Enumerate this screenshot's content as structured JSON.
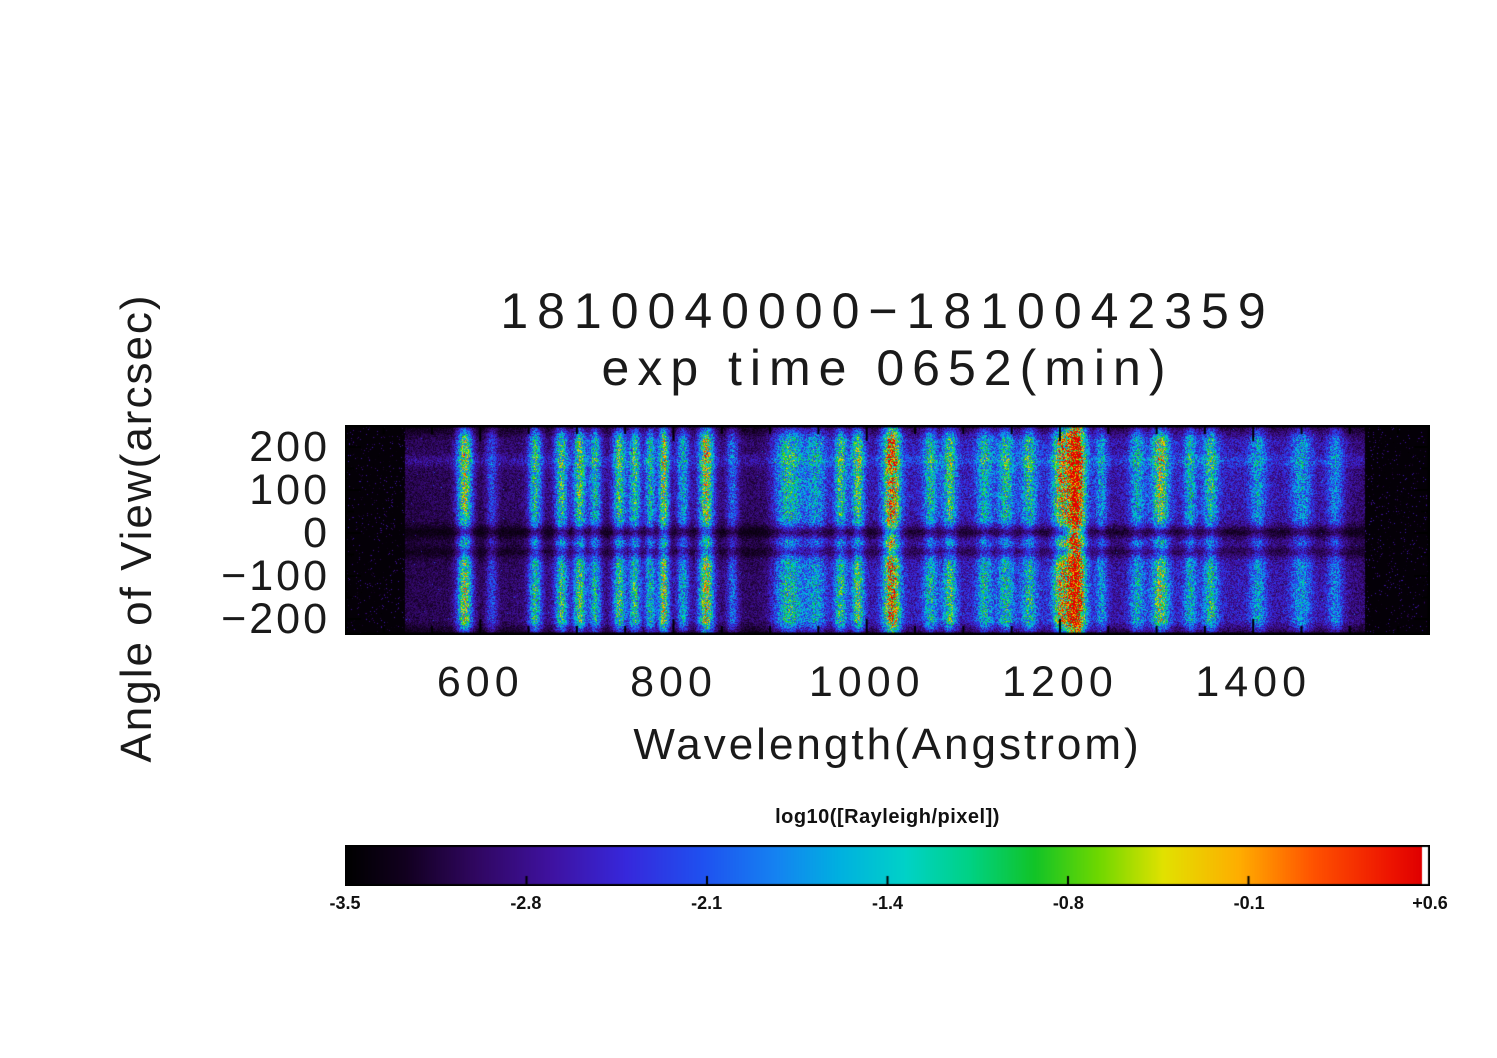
{
  "chart_data": {
    "type": "heatmap",
    "title": "1810040000−1810042359",
    "subtitle": "exp time 0652(min)",
    "xlabel": "Wavelength(Angstrom)",
    "ylabel": "Angle of View(arcsec)",
    "xlim": [
      460,
      1583
    ],
    "ylim": [
      -237,
      251
    ],
    "grid": false,
    "x_ticks": [
      {
        "value": 600,
        "label": "600"
      },
      {
        "value": 800,
        "label": "800"
      },
      {
        "value": 1000,
        "label": "1000"
      },
      {
        "value": 1200,
        "label": "1200"
      },
      {
        "value": 1400,
        "label": "1400"
      }
    ],
    "x_minor_step": 50,
    "y_ticks": [
      {
        "value": 200,
        "label": "200"
      },
      {
        "value": 100,
        "label": "100"
      },
      {
        "value": 0,
        "label": "0"
      },
      {
        "value": -100,
        "label": "−100"
      },
      {
        "value": -200,
        "label": "−200"
      }
    ],
    "y_minor_step": 50,
    "colorbar": {
      "label": "log10([Rayleigh/pixel])",
      "tick_labels": [
        "-3.5",
        "-2.8",
        "-2.1",
        "-1.4",
        "-0.8",
        "-0.1",
        "+0.6"
      ],
      "value_min": -3.5,
      "value_max": 0.6
    },
    "colormap": [
      [
        0.0,
        "#000000"
      ],
      [
        0.055,
        "#12001f"
      ],
      [
        0.12,
        "#300760"
      ],
      [
        0.19,
        "#3f12a0"
      ],
      [
        0.26,
        "#3728dc"
      ],
      [
        0.33,
        "#2050f0"
      ],
      [
        0.4,
        "#1583f2"
      ],
      [
        0.46,
        "#00b2e0"
      ],
      [
        0.52,
        "#00d2c8"
      ],
      [
        0.58,
        "#00d285"
      ],
      [
        0.64,
        "#12c428"
      ],
      [
        0.7,
        "#70d800"
      ],
      [
        0.76,
        "#e2e200"
      ],
      [
        0.83,
        "#ffae00"
      ],
      [
        0.9,
        "#ff5200"
      ],
      [
        0.97,
        "#ee1500"
      ],
      [
        1.0,
        "#e00000"
      ]
    ],
    "detector_range": [
      522,
      1516
    ],
    "background_profile": [
      [
        522,
        0.1
      ],
      [
        560,
        0.11
      ],
      [
        600,
        0.11
      ],
      [
        650,
        0.14
      ],
      [
        720,
        0.15
      ],
      [
        800,
        0.16
      ],
      [
        860,
        0.13
      ],
      [
        895,
        0.12
      ],
      [
        915,
        0.19
      ],
      [
        960,
        0.18
      ],
      [
        1010,
        0.2
      ],
      [
        1060,
        0.22
      ],
      [
        1110,
        0.22
      ],
      [
        1170,
        0.24
      ],
      [
        1216,
        0.26
      ],
      [
        1255,
        0.19
      ],
      [
        1300,
        0.23
      ],
      [
        1360,
        0.22
      ],
      [
        1430,
        0.2
      ],
      [
        1480,
        0.18
      ],
      [
        1516,
        0.14
      ]
    ],
    "emission_lines": [
      {
        "wl": 584,
        "amp": 0.55,
        "width": 13
      },
      {
        "wl": 612,
        "amp": 0.18,
        "width": 10
      },
      {
        "wl": 657,
        "amp": 0.4,
        "width": 11
      },
      {
        "wl": 684,
        "amp": 0.42,
        "width": 11
      },
      {
        "wl": 703,
        "amp": 0.45,
        "width": 11
      },
      {
        "wl": 719,
        "amp": 0.36,
        "width": 10
      },
      {
        "wl": 744,
        "amp": 0.42,
        "width": 11
      },
      {
        "wl": 760,
        "amp": 0.4,
        "width": 10
      },
      {
        "wl": 776,
        "amp": 0.34,
        "width": 9
      },
      {
        "wl": 790,
        "amp": 0.5,
        "width": 9,
        "pexp": 0.65
      },
      {
        "wl": 810,
        "amp": 0.3,
        "width": 10
      },
      {
        "wl": 834,
        "amp": 0.55,
        "width": 13,
        "pexp": 0.65
      },
      {
        "wl": 861,
        "amp": 0.22,
        "width": 10
      },
      {
        "wl": 920,
        "amp": 0.34,
        "width": 26
      },
      {
        "wl": 948,
        "amp": 0.26,
        "width": 18
      },
      {
        "wl": 973,
        "amp": 0.38,
        "width": 11
      },
      {
        "wl": 991,
        "amp": 0.42,
        "width": 11
      },
      {
        "wl": 1026,
        "amp": 0.62,
        "width": 15,
        "pexp": 0.4
      },
      {
        "wl": 1066,
        "amp": 0.3,
        "width": 12
      },
      {
        "wl": 1086,
        "amp": 0.36,
        "width": 12
      },
      {
        "wl": 1122,
        "amp": 0.28,
        "width": 14
      },
      {
        "wl": 1144,
        "amp": 0.3,
        "width": 14
      },
      {
        "wl": 1168,
        "amp": 0.3,
        "width": 13
      },
      {
        "wl": 1200,
        "amp": 0.42,
        "width": 13
      },
      {
        "wl": 1216,
        "amp": 0.86,
        "width": 16,
        "pexp": 0.25
      },
      {
        "wl": 1243,
        "amp": 0.22,
        "width": 10
      },
      {
        "wl": 1280,
        "amp": 0.26,
        "width": 13
      },
      {
        "wl": 1304,
        "amp": 0.42,
        "width": 15
      },
      {
        "wl": 1335,
        "amp": 0.26,
        "width": 11
      },
      {
        "wl": 1356,
        "amp": 0.32,
        "width": 13
      },
      {
        "wl": 1405,
        "amp": 0.24,
        "width": 14
      },
      {
        "wl": 1450,
        "amp": 0.24,
        "width": 18
      },
      {
        "wl": 1485,
        "amp": 0.22,
        "width": 14
      }
    ],
    "profile": {
      "flat_top": 215,
      "flat_bottom": -205,
      "edge_min": 0.32,
      "lanes": [
        {
          "center": 2,
          "sigma": 11,
          "depth": 0.62
        },
        {
          "center": -44,
          "sigma": 10,
          "depth": 0.45
        }
      ],
      "broad": {
        "center": -15,
        "sigma": 45,
        "depth": 0.15
      },
      "streak": {
        "center": 168,
        "sigma": 10,
        "amp": 0.06
      }
    }
  }
}
